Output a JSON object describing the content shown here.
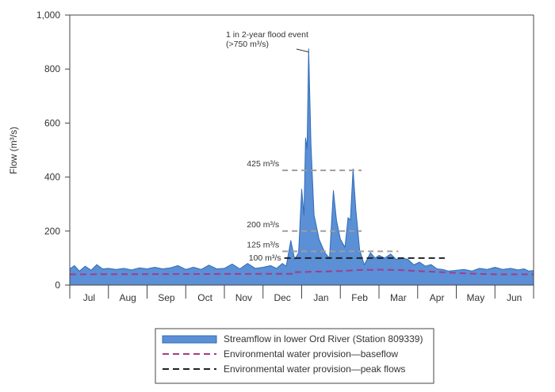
{
  "chart_data": {
    "type": "area",
    "title": "",
    "xlabel": "",
    "ylabel": "Flow (m³/s)",
    "ylim": [
      0,
      1000
    ],
    "yticks": [
      0,
      200,
      400,
      600,
      800,
      1000
    ],
    "ytick_labels": [
      "0",
      "200",
      "400",
      "600",
      "800",
      "1,000"
    ],
    "months": [
      "Jul",
      "Aug",
      "Sep",
      "Oct",
      "Nov",
      "Dec",
      "Jan",
      "Feb",
      "Mar",
      "Apr",
      "May",
      "Jun"
    ],
    "grid": false,
    "legend_position": "bottom",
    "series": [
      {
        "name": "Streamflow in lower Ord River (Station 809339)",
        "color": "#5b8fd6",
        "edge_color": "#2f6db5",
        "points": [
          [
            0.0,
            60
          ],
          [
            0.12,
            72
          ],
          [
            0.25,
            52
          ],
          [
            0.4,
            70
          ],
          [
            0.55,
            55
          ],
          [
            0.7,
            76
          ],
          [
            0.85,
            60
          ],
          [
            1.0,
            62
          ],
          [
            1.2,
            58
          ],
          [
            1.4,
            62
          ],
          [
            1.6,
            56
          ],
          [
            1.8,
            64
          ],
          [
            2.0,
            60
          ],
          [
            2.2,
            66
          ],
          [
            2.4,
            60
          ],
          [
            2.6,
            64
          ],
          [
            2.8,
            72
          ],
          [
            3.0,
            58
          ],
          [
            3.2,
            66
          ],
          [
            3.4,
            58
          ],
          [
            3.6,
            74
          ],
          [
            3.8,
            60
          ],
          [
            4.0,
            62
          ],
          [
            4.2,
            78
          ],
          [
            4.4,
            60
          ],
          [
            4.6,
            80
          ],
          [
            4.8,
            62
          ],
          [
            5.0,
            66
          ],
          [
            5.2,
            72
          ],
          [
            5.35,
            62
          ],
          [
            5.5,
            80
          ],
          [
            5.6,
            70
          ],
          [
            5.72,
            165
          ],
          [
            5.82,
            95
          ],
          [
            5.92,
            120
          ],
          [
            6.0,
            355
          ],
          [
            6.06,
            260
          ],
          [
            6.1,
            545
          ],
          [
            6.14,
            505
          ],
          [
            6.18,
            875
          ],
          [
            6.24,
            520
          ],
          [
            6.32,
            260
          ],
          [
            6.45,
            170
          ],
          [
            6.6,
            120
          ],
          [
            6.72,
            100
          ],
          [
            6.82,
            350
          ],
          [
            6.9,
            240
          ],
          [
            7.0,
            170
          ],
          [
            7.12,
            140
          ],
          [
            7.2,
            250
          ],
          [
            7.26,
            240
          ],
          [
            7.33,
            430
          ],
          [
            7.4,
            280
          ],
          [
            7.5,
            130
          ],
          [
            7.62,
            75
          ],
          [
            7.78,
            120
          ],
          [
            7.9,
            100
          ],
          [
            8.0,
            110
          ],
          [
            8.15,
            100
          ],
          [
            8.3,
            115
          ],
          [
            8.45,
            95
          ],
          [
            8.6,
            100
          ],
          [
            8.75,
            95
          ],
          [
            8.9,
            75
          ],
          [
            9.05,
            85
          ],
          [
            9.2,
            70
          ],
          [
            9.35,
            76
          ],
          [
            9.5,
            60
          ],
          [
            9.65,
            58
          ],
          [
            9.8,
            52
          ],
          [
            9.95,
            54
          ],
          [
            10.2,
            58
          ],
          [
            10.4,
            52
          ],
          [
            10.6,
            62
          ],
          [
            10.8,
            58
          ],
          [
            11.0,
            66
          ],
          [
            11.2,
            58
          ],
          [
            11.4,
            62
          ],
          [
            11.6,
            56
          ],
          [
            11.75,
            60
          ],
          [
            11.88,
            52
          ],
          [
            12.0,
            54
          ]
        ]
      },
      {
        "name": "Environmental water provision—baseflow",
        "color": "#a23c8c",
        "dash": "8,5",
        "points": [
          [
            0.0,
            40
          ],
          [
            5.85,
            42
          ],
          [
            5.85,
            48
          ],
          [
            7.0,
            52
          ],
          [
            7.5,
            56
          ],
          [
            8.0,
            57
          ],
          [
            8.5,
            56
          ],
          [
            9.0,
            52
          ],
          [
            9.5,
            49
          ],
          [
            10.0,
            45
          ],
          [
            10.5,
            42
          ],
          [
            11.0,
            40
          ],
          [
            12.0,
            40
          ]
        ]
      },
      {
        "name": "Environmental water provision—peak flows",
        "color": "#222222",
        "dash": "8,5",
        "points": [
          [
            5.55,
            100
          ],
          [
            9.7,
            100
          ]
        ]
      }
    ],
    "reference_lines": [
      {
        "label": "425 m³/s",
        "value": 425,
        "x_start": 5.5,
        "x_end": 7.55,
        "color": "#9e9e9e"
      },
      {
        "label": "200 m³/s",
        "value": 200,
        "x_start": 5.5,
        "x_end": 7.55,
        "color": "#9e9e9e"
      },
      {
        "label": "125 m³/s",
        "value": 125,
        "x_start": 5.5,
        "x_end": 8.5,
        "color": "#9e9e9e"
      }
    ],
    "peak_label_100": "100 m³/s",
    "annotation": {
      "line1": "1 in 2-year flood event",
      "line2": "(>750 m³/s)",
      "target": [
        6.18,
        875
      ]
    }
  }
}
